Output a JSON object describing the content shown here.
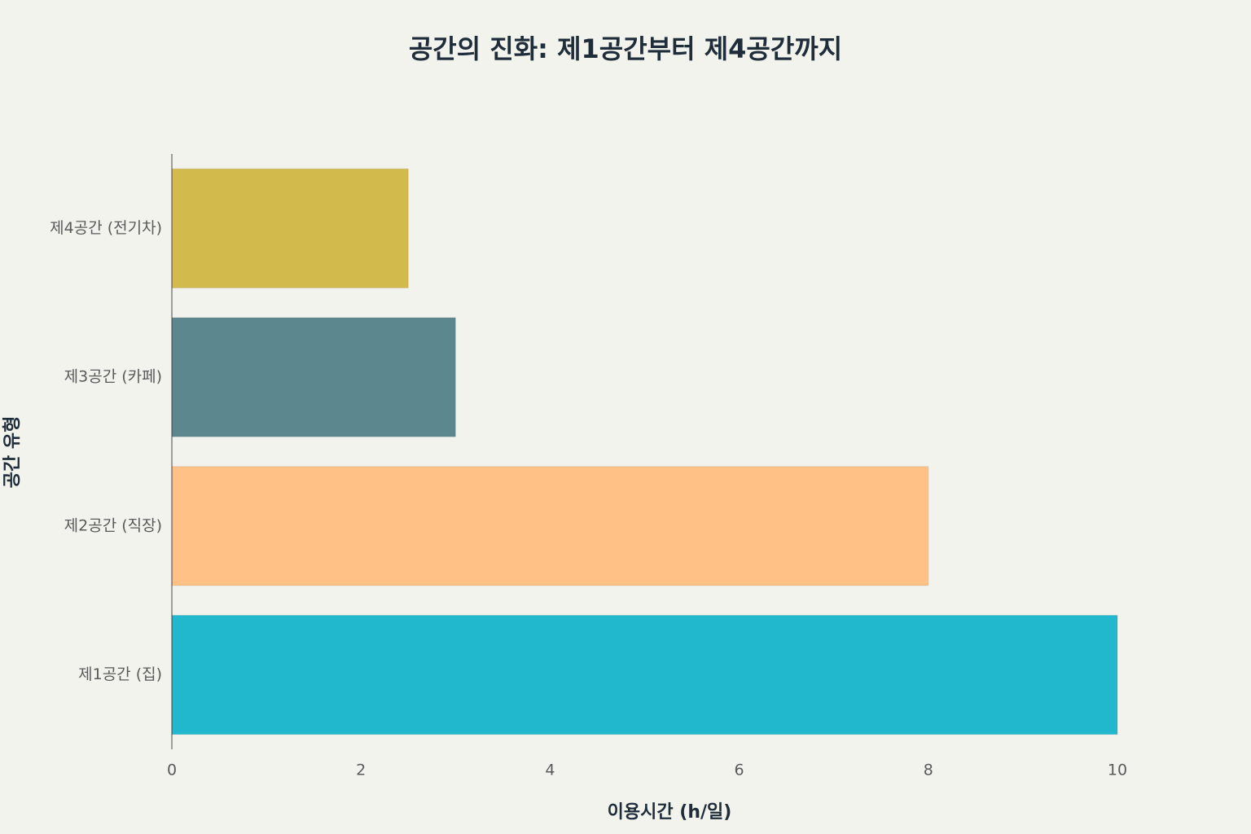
{
  "chart_data": {
    "type": "hbar",
    "title": "공간의 진화: 제1공간부터 제4공간까지",
    "x_label": "이용시간 (h/일)",
    "y_label": "공간 유형",
    "categories": [
      "제1공간 (집)",
      "제2공간 (직장)",
      "제3공간 (카페)",
      "제4공간 (전기차)"
    ],
    "values": [
      10,
      8,
      3,
      2.5
    ],
    "colors": [
      "#21b8cd",
      "#ffc185",
      "#5d878f",
      "#d2ba4c"
    ],
    "xlim": [
      0,
      10
    ],
    "xticks": [
      0,
      2,
      4,
      6,
      8,
      10
    ],
    "grid": false
  }
}
